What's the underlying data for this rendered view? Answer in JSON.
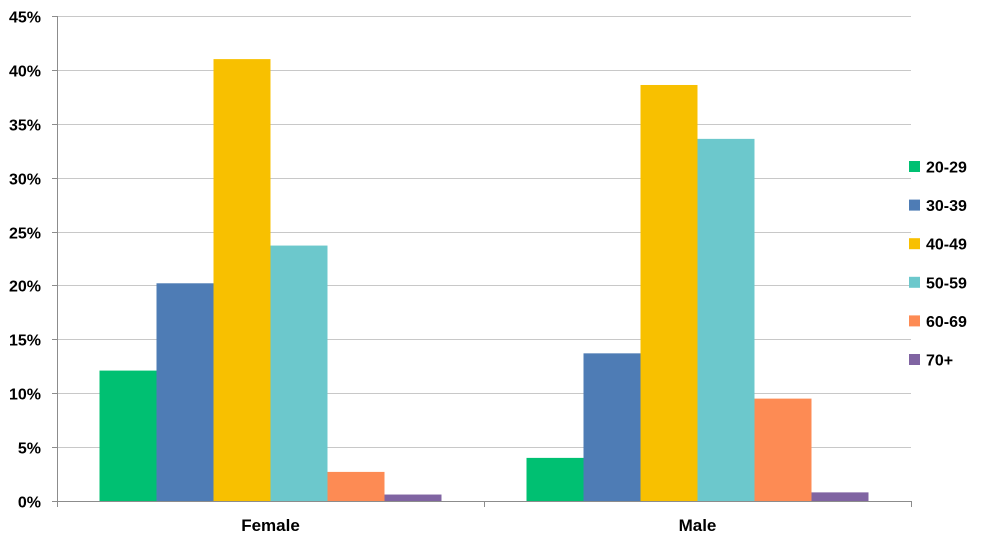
{
  "chart_data": {
    "type": "bar",
    "title": "",
    "xlabel": "",
    "ylabel": "",
    "categories": [
      "Female",
      "Male"
    ],
    "series": [
      {
        "name": "20-29",
        "color": "#00c072",
        "values": [
          0.121,
          0.04
        ]
      },
      {
        "name": "30-39",
        "color": "#4e7cb5",
        "values": [
          0.202,
          0.137
        ]
      },
      {
        "name": "40-49",
        "color": "#f8c000",
        "values": [
          0.41,
          0.386
        ]
      },
      {
        "name": "50-59",
        "color": "#6cc8cc",
        "values": [
          0.237,
          0.336
        ]
      },
      {
        "name": "60-69",
        "color": "#fd8b54",
        "values": [
          0.027,
          0.095
        ]
      },
      {
        "name": "70+",
        "color": "#8064a2",
        "values": [
          0.006,
          0.008
        ]
      }
    ],
    "ylim": [
      0,
      0.45
    ],
    "yticks": [
      0,
      0.05,
      0.1,
      0.15,
      0.2,
      0.25,
      0.3,
      0.35,
      0.4,
      0.45
    ],
    "ytick_labels": [
      "0%",
      "5%",
      "10%",
      "15%",
      "20%",
      "25%",
      "30%",
      "35%",
      "40%",
      "45%"
    ],
    "grid": true,
    "legend_position": "right"
  }
}
